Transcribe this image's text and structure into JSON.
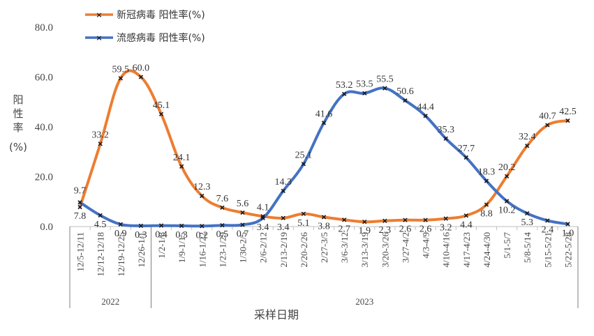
{
  "chart_data": {
    "type": "line",
    "ylabel": "阳性率\n(%)",
    "xlabel": "采样日期",
    "ylim": [
      0,
      80
    ],
    "yticks": [
      "0.0",
      "20.0",
      "40.0",
      "60.0",
      "80.0"
    ],
    "categories": [
      "12/5-12/11",
      "12/12-12/18",
      "12/19-12/25",
      "12/26-1/1",
      "1/2-1/8",
      "1/9-1/15",
      "1/16-1/22",
      "1/23-1/29",
      "1/30-2/5",
      "2/6-2/12",
      "2/13-2/19",
      "2/20-2/26",
      "2/27-3/5",
      "3/6-3/12",
      "3/13-3/19",
      "3/20-3/26",
      "3/27-4/2",
      "4/3-4/9",
      "4/10-4/16",
      "4/17-4/23",
      "4/24-4/30",
      "5/1-5/7",
      "5/8-5/14",
      "5/15-5/21",
      "5/22-5/28"
    ],
    "year_groups": [
      {
        "label": "2022",
        "start": 0,
        "end": 3
      },
      {
        "label": "2023",
        "start": 4,
        "end": 24
      }
    ],
    "series": [
      {
        "name": "新冠病毒 阳性率(%)",
        "color": "#ED7D31",
        "values": [
          7.8,
          33.2,
          59.5,
          60.0,
          45.1,
          24.1,
          12.3,
          7.6,
          5.6,
          4.1,
          3.4,
          5.1,
          3.8,
          2.7,
          1.9,
          2.3,
          2.6,
          2.6,
          3.2,
          4.4,
          8.8,
          20.2,
          32.4,
          40.7,
          42.5
        ]
      },
      {
        "name": "流感病毒 阳性率(%)",
        "color": "#4472C4",
        "values": [
          9.7,
          4.5,
          0.9,
          0.3,
          0.4,
          0.3,
          0.2,
          0.5,
          0.7,
          3.4,
          14.3,
          25.1,
          41.6,
          53.2,
          53.5,
          55.5,
          50.6,
          44.4,
          35.3,
          27.7,
          18.3,
          10.2,
          5.3,
          2.4,
          1.0
        ]
      }
    ],
    "grid": false,
    "legend": "top-left",
    "marker": "x"
  }
}
